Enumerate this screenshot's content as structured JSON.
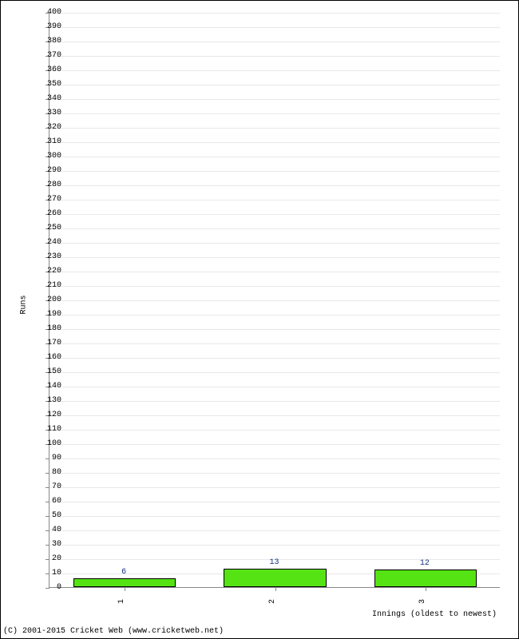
{
  "chart": {
    "type": "bar",
    "background_color": "#ffffff",
    "border_color": "#000000",
    "grid_color": "#e8e8e8",
    "axis_color": "#888888",
    "text_color": "#000000",
    "label_fontsize": 10,
    "y_axis": {
      "title": "Runs",
      "min": 0,
      "max": 400,
      "tick_step": 10,
      "ticks": [
        0,
        10,
        20,
        30,
        40,
        50,
        60,
        70,
        80,
        90,
        100,
        110,
        120,
        130,
        140,
        150,
        160,
        170,
        180,
        190,
        200,
        210,
        220,
        230,
        240,
        250,
        260,
        270,
        280,
        290,
        300,
        310,
        320,
        330,
        340,
        350,
        360,
        370,
        380,
        390,
        400
      ]
    },
    "x_axis": {
      "title": "Innings (oldest to newest)",
      "categories": [
        "1",
        "2",
        "3"
      ],
      "tick_rotation": -90
    },
    "bars": {
      "values": [
        6,
        13,
        12
      ],
      "color": "#55e314",
      "border_color": "#000000",
      "label_color": "#15317e",
      "width_fraction": 0.68
    },
    "footer": "(C) 2001-2015 Cricket Web (www.cricketweb.net)"
  }
}
